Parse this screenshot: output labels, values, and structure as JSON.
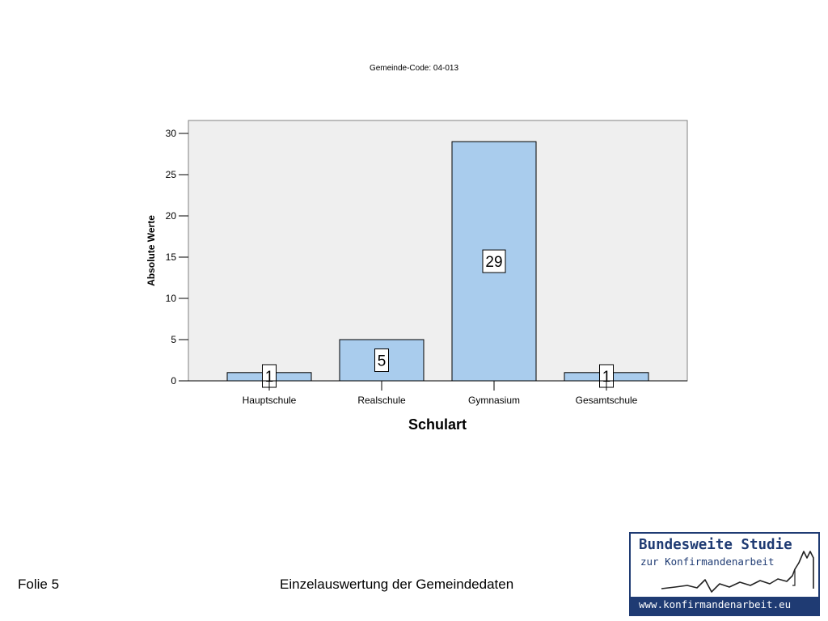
{
  "slide": {
    "folie": "Folie 5",
    "footer_title": "Einzelauswertung der Gemeindedaten"
  },
  "logo": {
    "title": "Bundesweite Studie",
    "subtitle": "zur Konfirmandenarbeit",
    "url": "www.konfirmandenarbeit.eu",
    "color": "#1f3b73"
  },
  "chart_data": {
    "type": "bar",
    "title": "Gemeinde-Code: 04-013",
    "xlabel": "Schulart",
    "ylabel": "Absolute Werte",
    "categories": [
      "Hauptschule",
      "Realschule",
      "Gymnasium",
      "Gesamtschule"
    ],
    "values": [
      1,
      5,
      29,
      1
    ],
    "data_labels": [
      "1",
      "5",
      "29",
      "1"
    ],
    "ylim": [
      0,
      31
    ],
    "yticks": [
      0,
      5,
      10,
      15,
      20,
      25,
      30
    ],
    "ytick_labels": [
      "0",
      "5",
      "10",
      "15",
      "20",
      "25",
      "30"
    ],
    "grid": false,
    "legend": "none",
    "bar_color": "#a9cced",
    "plot_background": "#efefef"
  }
}
